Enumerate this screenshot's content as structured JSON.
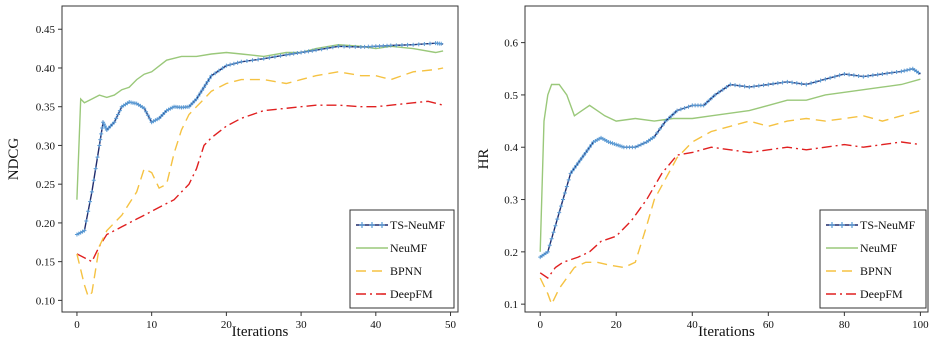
{
  "chart_data": [
    {
      "type": "line",
      "xlabel": "Iterations",
      "ylabel": "NDCG",
      "xlim": [
        -2,
        51
      ],
      "ylim": [
        0.085,
        0.48
      ],
      "xticks": [
        0,
        10,
        20,
        30,
        40,
        50
      ],
      "yticks": [
        0.1,
        0.15,
        0.2,
        0.25,
        0.3,
        0.35,
        0.4,
        0.45
      ],
      "ytick_labels": [
        "0.10",
        "0.15",
        "0.20",
        "0.25",
        "0.30",
        "0.35",
        "0.40",
        "0.45"
      ],
      "legend_position": "bottom-right",
      "series": [
        {
          "name": "TS-NeuMF",
          "color": "#1f2a6b",
          "marker_color": "#5b9bd5",
          "dash": "solid",
          "x": [
            0,
            1,
            2,
            3,
            3.5,
            4,
            5,
            6,
            7,
            8,
            9,
            10,
            11,
            12,
            13,
            14,
            15,
            16,
            17,
            18,
            20,
            22,
            25,
            28,
            30,
            32,
            35,
            38,
            40,
            42,
            45,
            48,
            49
          ],
          "y": [
            0.185,
            0.19,
            0.24,
            0.3,
            0.33,
            0.32,
            0.33,
            0.35,
            0.356,
            0.354,
            0.348,
            0.33,
            0.335,
            0.345,
            0.35,
            0.349,
            0.35,
            0.36,
            0.375,
            0.39,
            0.403,
            0.408,
            0.412,
            0.417,
            0.42,
            0.423,
            0.428,
            0.427,
            0.428,
            0.429,
            0.43,
            0.432,
            0.431
          ]
        },
        {
          "name": "NeuMF",
          "color": "#9ac87a",
          "dash": "solid",
          "x": [
            0,
            0.5,
            1,
            2,
            3,
            4,
            5,
            6,
            7,
            8,
            9,
            10,
            12,
            14,
            16,
            18,
            20,
            22,
            25,
            28,
            30,
            32,
            35,
            38,
            40,
            42,
            45,
            48,
            49
          ],
          "y": [
            0.23,
            0.36,
            0.355,
            0.36,
            0.365,
            0.362,
            0.365,
            0.372,
            0.375,
            0.385,
            0.392,
            0.395,
            0.41,
            0.415,
            0.415,
            0.418,
            0.42,
            0.418,
            0.415,
            0.42,
            0.42,
            0.425,
            0.43,
            0.428,
            0.425,
            0.428,
            0.425,
            0.42,
            0.422
          ]
        },
        {
          "name": "BPNN",
          "color": "#f5c242",
          "dash": "10,6",
          "x": [
            0,
            1,
            1.5,
            2,
            3,
            4,
            5,
            6,
            7,
            8,
            9,
            10,
            11,
            12,
            13,
            14,
            15,
            16,
            17,
            18,
            20,
            22,
            25,
            28,
            30,
            32,
            35,
            38,
            40,
            42,
            45,
            48,
            49
          ],
          "y": [
            0.16,
            0.12,
            0.105,
            0.11,
            0.17,
            0.19,
            0.2,
            0.21,
            0.225,
            0.24,
            0.27,
            0.265,
            0.245,
            0.25,
            0.29,
            0.32,
            0.34,
            0.35,
            0.36,
            0.37,
            0.38,
            0.385,
            0.385,
            0.38,
            0.385,
            0.39,
            0.395,
            0.39,
            0.39,
            0.385,
            0.395,
            0.398,
            0.4
          ]
        },
        {
          "name": "DeepFM",
          "color": "#e02020",
          "dash": "10,4,2,4",
          "x": [
            0,
            1,
            2,
            3,
            4,
            5,
            6,
            7,
            8,
            9,
            10,
            11,
            12,
            13,
            14,
            15,
            16,
            17,
            18,
            20,
            22,
            25,
            28,
            30,
            32,
            35,
            38,
            40,
            42,
            45,
            47,
            49
          ],
          "y": [
            0.16,
            0.155,
            0.15,
            0.17,
            0.185,
            0.19,
            0.195,
            0.2,
            0.205,
            0.21,
            0.215,
            0.22,
            0.225,
            0.23,
            0.24,
            0.25,
            0.27,
            0.3,
            0.31,
            0.325,
            0.335,
            0.345,
            0.348,
            0.35,
            0.352,
            0.352,
            0.35,
            0.35,
            0.352,
            0.355,
            0.357,
            0.352
          ]
        }
      ]
    },
    {
      "type": "line",
      "xlabel": "Iterations",
      "ylabel": "HR",
      "xlim": [
        -4,
        102
      ],
      "ylim": [
        0.085,
        0.67
      ],
      "xticks": [
        0,
        20,
        40,
        60,
        80,
        100
      ],
      "yticks": [
        0.1,
        0.2,
        0.3,
        0.4,
        0.5,
        0.6
      ],
      "ytick_labels": [
        "0.1",
        "0.2",
        "0.3",
        "0.4",
        "0.5",
        "0.6"
      ],
      "legend_position": "bottom-right",
      "series": [
        {
          "name": "TS-NeuMF",
          "color": "#1f2a6b",
          "marker_color": "#5b9bd5",
          "dash": "solid",
          "x": [
            0,
            2,
            4,
            6,
            8,
            10,
            12,
            14,
            16,
            18,
            20,
            22,
            25,
            28,
            30,
            33,
            36,
            40,
            43,
            46,
            50,
            55,
            60,
            65,
            70,
            75,
            80,
            85,
            90,
            95,
            98,
            100
          ],
          "y": [
            0.19,
            0.2,
            0.25,
            0.3,
            0.35,
            0.37,
            0.39,
            0.41,
            0.418,
            0.41,
            0.405,
            0.4,
            0.4,
            0.41,
            0.42,
            0.45,
            0.47,
            0.48,
            0.48,
            0.5,
            0.52,
            0.515,
            0.52,
            0.525,
            0.52,
            0.53,
            0.54,
            0.535,
            0.54,
            0.545,
            0.55,
            0.54
          ]
        },
        {
          "name": "NeuMF",
          "color": "#9ac87a",
          "dash": "solid",
          "x": [
            0,
            1,
            2,
            3,
            5,
            7,
            9,
            11,
            13,
            15,
            17,
            20,
            25,
            30,
            35,
            40,
            45,
            50,
            55,
            60,
            65,
            70,
            75,
            80,
            85,
            90,
            95,
            100
          ],
          "y": [
            0.2,
            0.45,
            0.5,
            0.52,
            0.52,
            0.5,
            0.46,
            0.47,
            0.48,
            0.47,
            0.46,
            0.45,
            0.455,
            0.45,
            0.455,
            0.455,
            0.46,
            0.465,
            0.47,
            0.48,
            0.49,
            0.49,
            0.5,
            0.505,
            0.51,
            0.515,
            0.52,
            0.53
          ]
        },
        {
          "name": "BPNN",
          "color": "#f5c242",
          "dash": "10,6",
          "x": [
            0,
            2,
            3,
            5,
            7,
            9,
            12,
            15,
            18,
            22,
            25,
            28,
            30,
            33,
            36,
            40,
            45,
            50,
            55,
            60,
            65,
            70,
            75,
            80,
            85,
            90,
            95,
            100
          ],
          "y": [
            0.15,
            0.12,
            0.1,
            0.13,
            0.15,
            0.17,
            0.18,
            0.18,
            0.175,
            0.17,
            0.18,
            0.25,
            0.3,
            0.34,
            0.38,
            0.41,
            0.43,
            0.44,
            0.45,
            0.44,
            0.45,
            0.455,
            0.45,
            0.455,
            0.46,
            0.45,
            0.46,
            0.47
          ]
        },
        {
          "name": "DeepFM",
          "color": "#e02020",
          "dash": "10,4,2,4",
          "x": [
            0,
            2,
            4,
            6,
            8,
            10,
            13,
            16,
            20,
            24,
            28,
            32,
            36,
            40,
            45,
            50,
            55,
            60,
            65,
            70,
            75,
            80,
            85,
            90,
            95,
            100
          ],
          "y": [
            0.16,
            0.15,
            0.17,
            0.18,
            0.185,
            0.19,
            0.2,
            0.22,
            0.23,
            0.26,
            0.3,
            0.35,
            0.385,
            0.39,
            0.4,
            0.395,
            0.39,
            0.395,
            0.4,
            0.395,
            0.4,
            0.405,
            0.4,
            0.405,
            0.41,
            0.405
          ]
        }
      ]
    }
  ]
}
